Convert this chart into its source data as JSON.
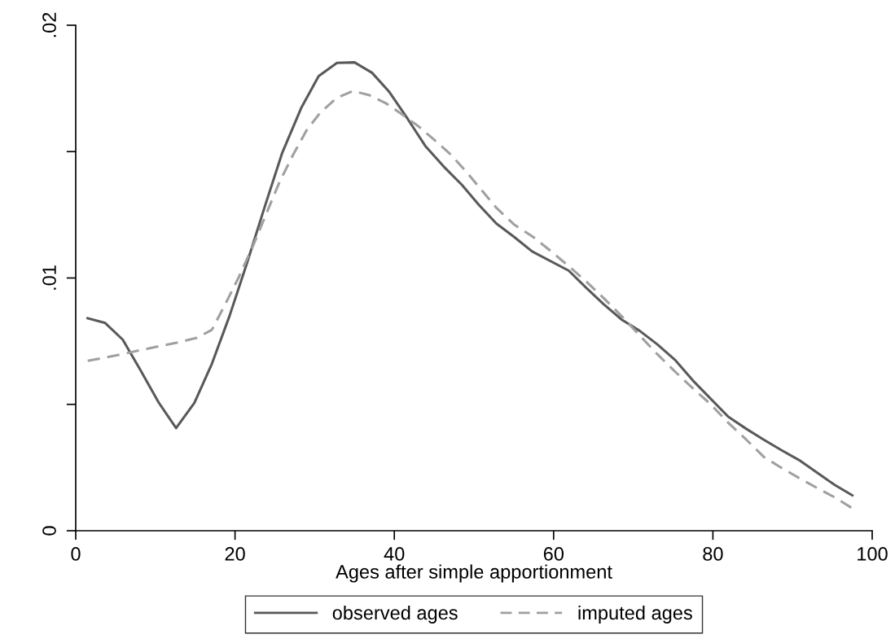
{
  "chart_data": {
    "type": "line",
    "xlabel": "Ages after simple apportionment",
    "xlim": [
      0,
      100
    ],
    "xticks": [
      0,
      20,
      40,
      60,
      80,
      100
    ],
    "ylim": [
      0,
      0.02
    ],
    "yticks": [
      0,
      {
        "value": 0.005,
        "label": null
      },
      {
        "value": 0.01,
        "label": ".01"
      },
      {
        "value": 0.015,
        "label": null
      },
      {
        "value": 0.02,
        "label": ".02"
      }
    ],
    "grid": false,
    "legend": "bottom",
    "marker": "none",
    "series": [
      {
        "name": "observed ages",
        "color": "#595959",
        "line_style": "solid",
        "x": [
          1.5,
          3.7,
          5.9,
          8.1,
          10.4,
          12.6,
          14.9,
          17.1,
          19.3,
          21.5,
          23.7,
          25.9,
          28.3,
          30.5,
          32.8,
          35.0,
          37.2,
          39.4,
          41.6,
          43.9,
          46.2,
          48.5,
          50.6,
          52.8,
          55.1,
          57.3,
          61.9,
          64.1,
          66.3,
          68.6,
          70.8,
          73.0,
          75.3,
          77.5,
          81.9,
          84.2,
          86.4,
          88.6,
          90.8,
          95.3,
          97.5
        ],
        "values": [
          0.00841,
          0.00822,
          0.00756,
          0.00637,
          0.00508,
          0.00406,
          0.00506,
          0.00661,
          0.00849,
          0.01059,
          0.01279,
          0.01493,
          0.01672,
          0.01799,
          0.01851,
          0.01853,
          0.01812,
          0.01735,
          0.01633,
          0.01522,
          0.01441,
          0.01368,
          0.0129,
          0.01216,
          0.01161,
          0.01105,
          0.01029,
          0.00961,
          0.00896,
          0.00834,
          0.00791,
          0.00738,
          0.00674,
          0.00594,
          0.00452,
          0.00403,
          0.0036,
          0.00319,
          0.0028,
          0.00181,
          0.0014
        ]
      },
      {
        "name": "imputed ages",
        "color": "#a0a0a0",
        "line_style": "dashed",
        "x": [
          1.5,
          3.8,
          5.9,
          8.2,
          10.6,
          12.8,
          15.2,
          17.1,
          18.8,
          20.5,
          22.2,
          23.9,
          25.6,
          27.3,
          29.0,
          30.7,
          32.8,
          34.8,
          36.8,
          38.9,
          40.9,
          43.0,
          45.0,
          47.1,
          49.1,
          50.8,
          52.8,
          55.1,
          57.5,
          59.7,
          62.0,
          64.1,
          66.3,
          68.6,
          70.8,
          73.0,
          75.3,
          77.5,
          79.7,
          81.9,
          84.2,
          86.4,
          88.6,
          90.8,
          93.1,
          95.3,
          97.5
        ],
        "values": [
          0.00672,
          0.00686,
          0.00699,
          0.00715,
          0.00731,
          0.00745,
          0.00763,
          0.00795,
          0.00898,
          0.01005,
          0.01123,
          0.01252,
          0.01381,
          0.01488,
          0.01585,
          0.01654,
          0.01713,
          0.0174,
          0.01724,
          0.01692,
          0.01649,
          0.01601,
          0.01547,
          0.01488,
          0.01418,
          0.01354,
          0.01278,
          0.0121,
          0.01161,
          0.01105,
          0.01044,
          0.00986,
          0.0092,
          0.00847,
          0.00773,
          0.00699,
          0.00628,
          0.00563,
          0.00501,
          0.00428,
          0.0036,
          0.00292,
          0.00249,
          0.00209,
          0.00169,
          0.00132,
          0.00089
        ]
      }
    ]
  }
}
